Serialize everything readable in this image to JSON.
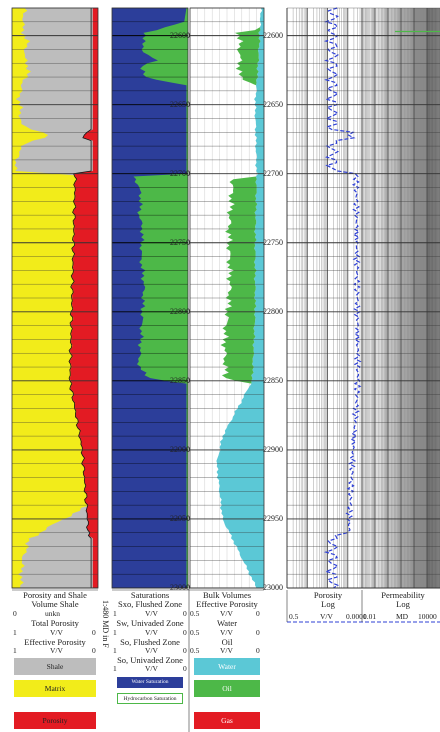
{
  "chart_data": {
    "type": "well-log",
    "depth_unit_label": "1:480 MD in F",
    "depth_range": [
      22580,
      23000
    ],
    "depth_ticks": [
      22600,
      22650,
      22700,
      22750,
      22800,
      22850,
      22900,
      22950,
      23000
    ],
    "track1": {
      "curves": [
        {
          "name": "Volume Shale",
          "range": [
            "0",
            "unkn"
          ]
        },
        {
          "name": "Total Porosity",
          "range": [
            "1",
            "V/V",
            "0"
          ]
        },
        {
          "name": "Effective Porosity",
          "range": [
            "1",
            "V/V",
            "0"
          ]
        }
      ],
      "title": "Porosity and Shale",
      "legend": [
        {
          "label": "Shale",
          "color": "#bdbdbd"
        },
        {
          "label": "Matrix",
          "color": "#f2ec1a"
        },
        {
          "label": "Porosity",
          "color": "#e31b23"
        }
      ]
    },
    "track2": {
      "title": "Saturations",
      "curves": [
        {
          "name": "Sxo, Flushed Zone",
          "range": [
            "1",
            "V/V",
            "0"
          ]
        },
        {
          "name": "Sw, Univaded Zone",
          "range": [
            "1",
            "V/V",
            "0"
          ]
        },
        {
          "name": "So, Flushed Zone",
          "range": [
            "1",
            "V/V",
            "0"
          ]
        },
        {
          "name": "So, Univaded Zone",
          "range": [
            "1",
            "V/V",
            "0"
          ]
        }
      ],
      "legend": [
        {
          "label": "Water Saturation",
          "color": "#2c3e9a"
        },
        {
          "label": "Hydrocarbon Saturation",
          "color": "#4db848"
        }
      ]
    },
    "track3": {
      "title": "Bulk Volumes",
      "curves": [
        {
          "name": "Effective Porosity",
          "range": [
            "0.5",
            "V/V",
            "0"
          ]
        },
        {
          "name": "Water",
          "range": [
            "0.5",
            "V/V",
            "0"
          ]
        },
        {
          "name": "Oil",
          "range": [
            "0.5",
            "V/V",
            "0"
          ]
        }
      ],
      "legend": [
        {
          "label": "Water",
          "color": "#5bc8d6"
        },
        {
          "label": "Oil",
          "color": "#4db848"
        },
        {
          "label": "Gas",
          "color": "#e31b23"
        }
      ]
    },
    "track4": {
      "curves": [
        {
          "name": "Porosity",
          "scale": "Log",
          "range": [
            "0.5",
            "V/V",
            "0.0001"
          ]
        },
        {
          "name": "Permeability",
          "scale": "Log",
          "range": [
            "0.01",
            "MD",
            "10000"
          ]
        }
      ]
    },
    "shale": [
      [
        22580,
        0.85
      ],
      [
        22595,
        0.88
      ],
      [
        22605,
        0.82
      ],
      [
        22615,
        0.86
      ],
      [
        22625,
        0.8
      ],
      [
        22635,
        0.88
      ],
      [
        22645,
        0.92
      ],
      [
        22655,
        0.9
      ],
      [
        22665,
        0.9
      ],
      [
        22672,
        0.55
      ],
      [
        22678,
        0.85
      ],
      [
        22690,
        0.96
      ],
      [
        22698,
        0.95
      ],
      [
        22702,
        0.1
      ],
      [
        22710,
        0.06
      ],
      [
        22730,
        0.05
      ],
      [
        22760,
        0.06
      ],
      [
        22800,
        0.05
      ],
      [
        22850,
        0.04
      ],
      [
        22870,
        0.06
      ],
      [
        22890,
        0.08
      ],
      [
        22905,
        0.1
      ],
      [
        22920,
        0.06
      ],
      [
        22940,
        0.1
      ],
      [
        22955,
        0.55
      ],
      [
        22965,
        0.8
      ],
      [
        22980,
        0.88
      ],
      [
        23000,
        0.9
      ]
    ],
    "porosity": [
      [
        22580,
        0.15
      ],
      [
        22600,
        0.2
      ],
      [
        22620,
        0.15
      ],
      [
        22640,
        0.1
      ],
      [
        22660,
        0.1
      ],
      [
        22700,
        0.26
      ],
      [
        22750,
        0.28
      ],
      [
        22800,
        0.3
      ],
      [
        22850,
        0.32
      ],
      [
        22900,
        0.18
      ],
      [
        22950,
        0.12
      ],
      [
        23000,
        0.08
      ]
    ],
    "sxo": [
      [
        22580,
        0.02
      ],
      [
        22590,
        0.05
      ],
      [
        22598,
        0.55
      ],
      [
        22605,
        0.6
      ],
      [
        22612,
        0.58
      ],
      [
        22618,
        0.42
      ],
      [
        22622,
        0.6
      ],
      [
        22630,
        0.58
      ],
      [
        22636,
        0.02
      ],
      [
        22700,
        0.02
      ],
      [
        22702,
        0.7
      ],
      [
        22715,
        0.62
      ],
      [
        22730,
        0.64
      ],
      [
        22740,
        0.6
      ],
      [
        22760,
        0.62
      ],
      [
        22780,
        0.58
      ],
      [
        22800,
        0.6
      ],
      [
        22820,
        0.62
      ],
      [
        22840,
        0.65
      ],
      [
        22848,
        0.5
      ],
      [
        22852,
        0.02
      ],
      [
        23000,
        0.02
      ]
    ],
    "bvw": [
      [
        22580,
        0.02
      ],
      [
        22620,
        0.04
      ],
      [
        22650,
        0.06
      ],
      [
        22700,
        0.05
      ],
      [
        22750,
        0.06
      ],
      [
        22800,
        0.06
      ],
      [
        22850,
        0.08
      ],
      [
        22890,
        0.28
      ],
      [
        22900,
        0.3
      ],
      [
        22910,
        0.32
      ],
      [
        22930,
        0.3
      ],
      [
        22950,
        0.28
      ],
      [
        23000,
        0.05
      ]
    ],
    "oil": [
      [
        22580,
        0.0
      ],
      [
        22595,
        0.0
      ],
      [
        22598,
        0.14
      ],
      [
        22610,
        0.13
      ],
      [
        22630,
        0.12
      ],
      [
        22636,
        0.0
      ],
      [
        22702,
        0.0
      ],
      [
        22704,
        0.16
      ],
      [
        22740,
        0.18
      ],
      [
        22780,
        0.17
      ],
      [
        22820,
        0.2
      ],
      [
        22848,
        0.18
      ],
      [
        22852,
        0.0
      ],
      [
        23000,
        0.0
      ]
    ],
    "perm_steps": [
      0.01,
      0.1,
      1,
      10,
      100,
      1000,
      10000
    ]
  }
}
